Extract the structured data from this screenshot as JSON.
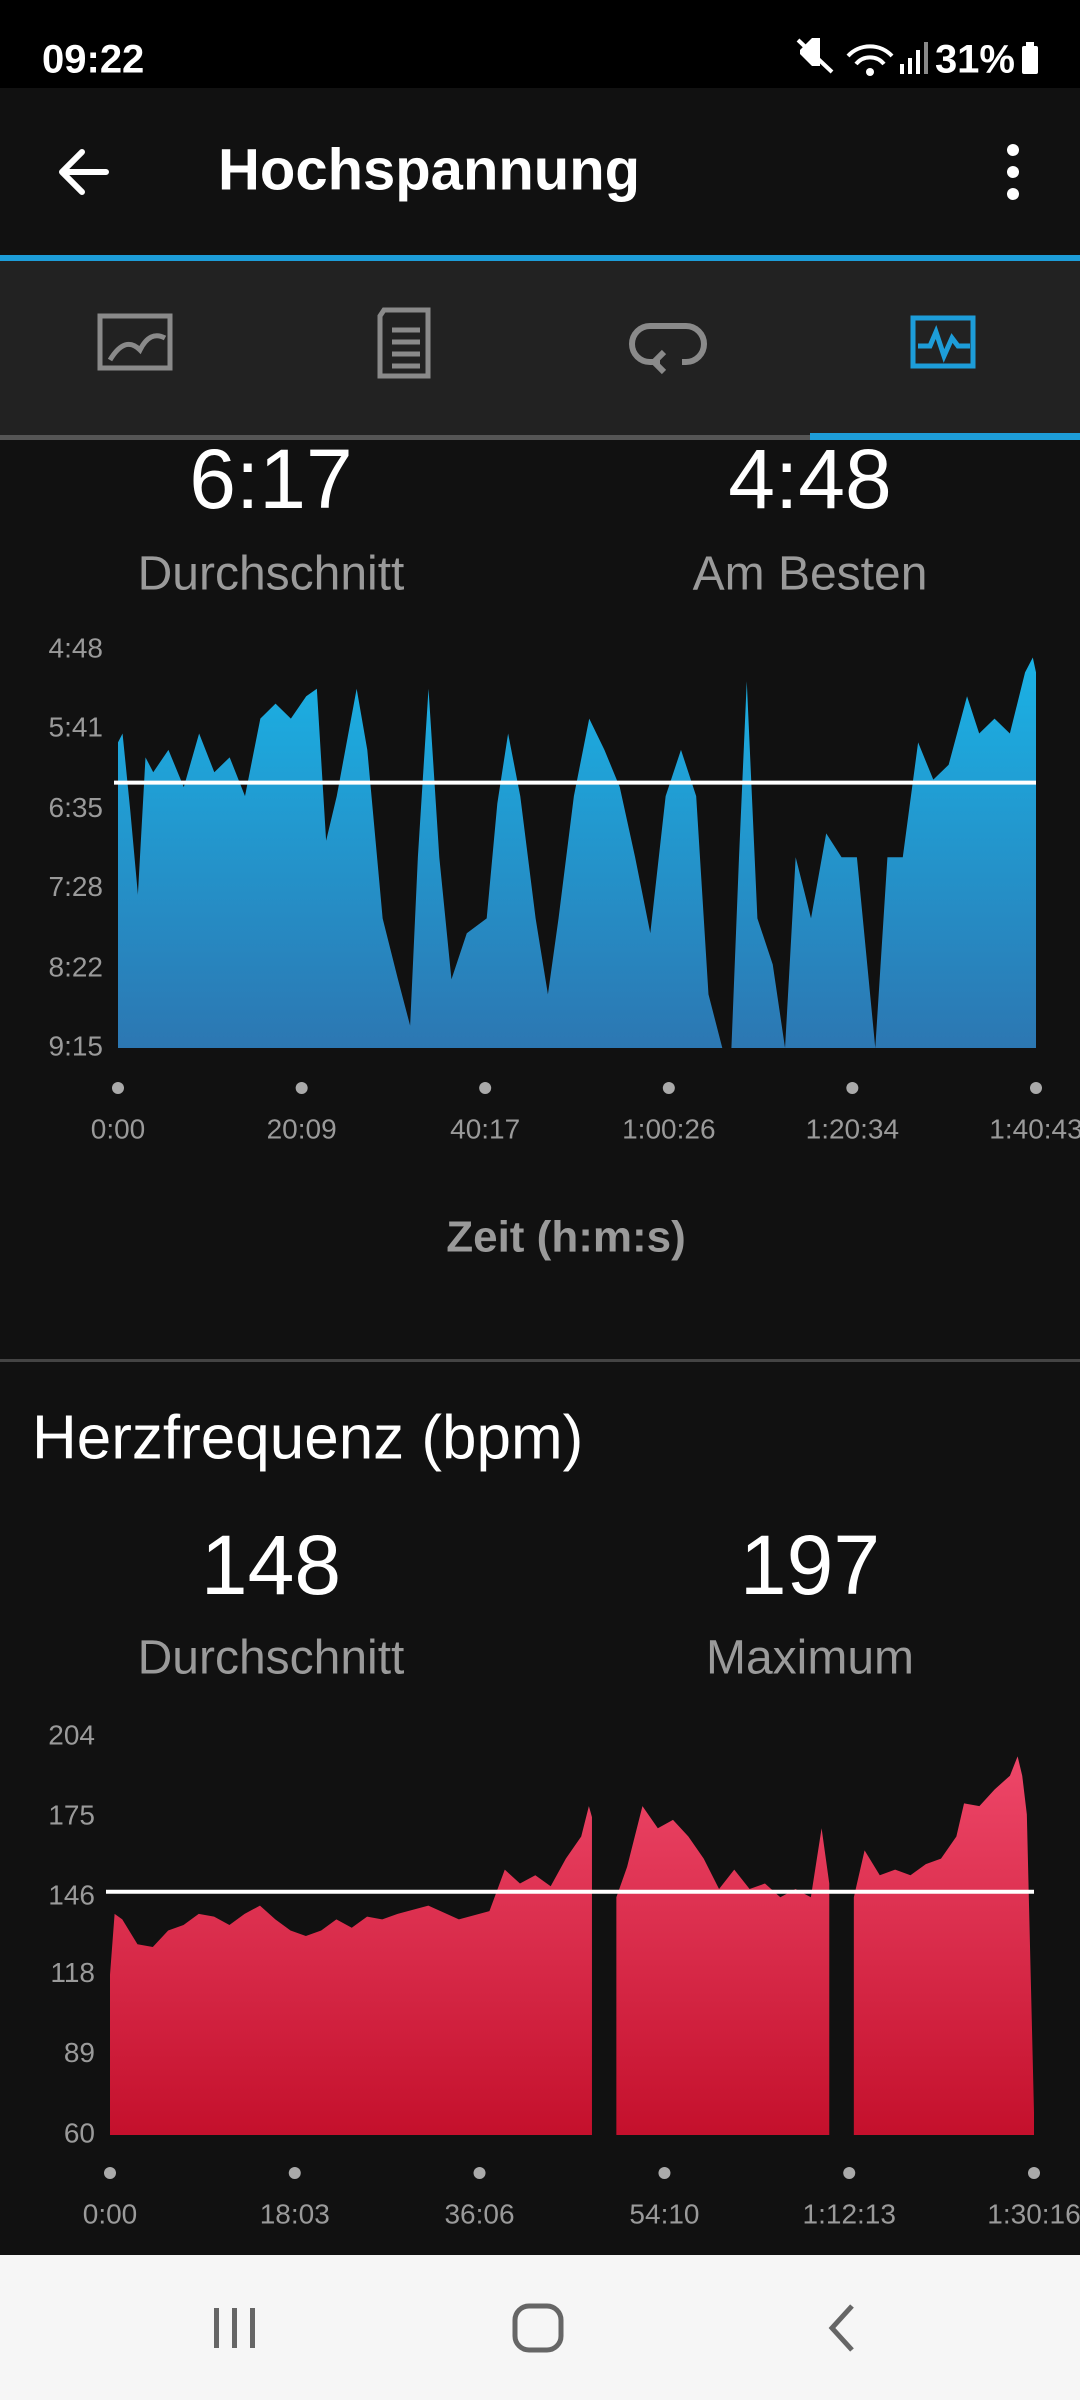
{
  "status_bar": {
    "time": "09:22",
    "battery": "31%"
  },
  "app_bar": {
    "title": "Hochspannung"
  },
  "chart_data": [
    {
      "type": "area",
      "x_label": "Zeit (h:m:s)",
      "average": {
        "value": 377,
        "label": "6:17",
        "name": "Durchschnitt"
      },
      "best": {
        "value": 288,
        "label": "4:48",
        "name": "Am Besten"
      },
      "x": [
        0,
        30,
        81,
        131,
        181,
        232,
        332,
        433,
        534,
        634,
        735,
        836,
        937,
        1037,
        1138,
        1239,
        1309,
        1370,
        1440,
        1571,
        1641,
        1742,
        1843,
        1923,
        1974,
        2044,
        2115,
        2195,
        2296,
        2427,
        2497,
        2568,
        2648,
        2749,
        2830,
        2900,
        3001,
        3102,
        3202,
        3303,
        3404,
        3504,
        3605,
        3706,
        3806,
        3887,
        3978,
        4038,
        4088,
        4139,
        4209,
        4310,
        4391,
        4461,
        4562,
        4662,
        4763,
        4864,
        4985,
        5065,
        5166,
        5267,
        5367,
        5468,
        5589,
        5669,
        5770,
        5871,
        5971,
        6022,
        6043
      ],
      "series": [
        {
          "color": "#1ab3e6",
          "gradient_end": "#2c77b2",
          "values": [
            350,
            344,
            396,
            452,
            360,
            370,
            355,
            380,
            344,
            370,
            360,
            386,
            334,
            324,
            334,
            319,
            314,
            416,
            386,
            314,
            355,
            468,
            509,
            540,
            427,
            314,
            427,
            509,
            478,
            468,
            391,
            344,
            386,
            468,
            519,
            468,
            386,
            334,
            355,
            380,
            427,
            478,
            386,
            355,
            386,
            519,
            555,
            555,
            427,
            309,
            468,
            499,
            555,
            427,
            468,
            411,
            427,
            427,
            555,
            427,
            427,
            350,
            375,
            365,
            319,
            344,
            334,
            344,
            303,
            293,
            303
          ]
        }
      ],
      "xlim": [
        0,
        6043
      ],
      "xticks": [
        {
          "value": 0,
          "label": "0:00"
        },
        {
          "value": 1209,
          "label": "20:09"
        },
        {
          "value": 2417,
          "label": "40:17"
        },
        {
          "value": 3626,
          "label": "1:00:26"
        },
        {
          "value": 4834,
          "label": "1:20:34"
        },
        {
          "value": 6043,
          "label": "1:40:43"
        }
      ],
      "ylim": [
        555,
        288
      ],
      "yticks": [
        {
          "value": 288,
          "label": "4:48"
        },
        {
          "value": 341,
          "label": "5:41"
        },
        {
          "value": 395,
          "label": "6:35"
        },
        {
          "value": 448,
          "label": "7:28"
        },
        {
          "value": 502,
          "label": "8:22"
        },
        {
          "value": 555,
          "label": "9:15"
        }
      ]
    },
    {
      "type": "area",
      "title": "Herzfrequenz (bpm)",
      "average": {
        "value": 148,
        "name": "Durchschnitt"
      },
      "maximum": {
        "value": 197,
        "name": "Maximum"
      },
      "x": [
        0,
        27,
        72,
        161,
        251,
        341,
        431,
        520,
        610,
        700,
        789,
        879,
        969,
        1058,
        1148,
        1238,
        1327,
        1417,
        1507,
        1596,
        1686,
        1866,
        2045,
        2224,
        2314,
        2403,
        2493,
        2583,
        2672,
        2762,
        2807,
        2825,
        2900,
        2968,
        3031,
        3121,
        3211,
        3300,
        3390,
        3480,
        3570,
        3659,
        3749,
        3839,
        3929,
        4018,
        4108,
        4171,
        4216,
        4290,
        4360,
        4423,
        4512,
        4602,
        4692,
        4782,
        4871,
        4961,
        5006,
        5096,
        5185,
        5275,
        5320,
        5347,
        5374,
        5416
      ],
      "series": [
        {
          "color": "#f04a6c",
          "gradient_end": "#c4102c",
          "values": [
            118,
            140,
            138,
            129,
            128,
            134,
            136,
            140,
            139,
            136,
            140,
            143,
            138,
            134,
            132,
            134,
            138,
            135,
            139,
            138,
            140,
            143,
            138,
            141,
            156,
            151,
            154,
            150,
            160,
            168,
            179,
            175,
            null,
            146,
            157,
            179,
            171,
            174,
            168,
            160,
            149,
            156,
            149,
            151,
            146,
            149,
            146,
            171,
            151,
            null,
            146,
            163,
            154,
            156,
            154,
            158,
            160,
            168,
            180,
            179,
            185,
            190,
            197,
            190,
            176,
            68
          ]
        }
      ],
      "xlim": [
        0,
        5416
      ],
      "xticks": [
        {
          "value": 0,
          "label": "0:00"
        },
        {
          "value": 1083,
          "label": "18:03"
        },
        {
          "value": 2166,
          "label": "36:06"
        },
        {
          "value": 3250,
          "label": "54:10"
        },
        {
          "value": 4333,
          "label": "1:12:13"
        },
        {
          "value": 5416,
          "label": "1:30:16"
        }
      ],
      "ylim": [
        60,
        204
      ],
      "yticks": [
        60,
        89,
        118,
        146,
        175,
        204
      ]
    }
  ]
}
